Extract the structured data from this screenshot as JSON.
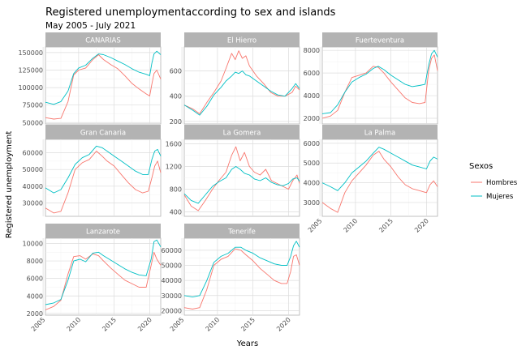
{
  "title": "Registered unemploymentaccording to sex and islands",
  "subtitle": "May 2005 - July 2021",
  "chart_data": {
    "type": "line",
    "xlabel": "Years",
    "ylabel": "Registered unemployment",
    "x_ticks": [
      2005,
      2010,
      2015,
      2020
    ],
    "x_range": [
      2005.33,
      2021.55
    ],
    "legend": {
      "title": "Sexos",
      "position": "right",
      "entries": [
        {
          "name": "Hombres",
          "color": "#F8766D"
        },
        {
          "name": "Mujeres",
          "color": "#00BFC4"
        }
      ]
    },
    "grid": true,
    "panels": [
      {
        "name": "CANARIAS",
        "ylim": [
          48000,
          158000
        ],
        "y_ticks": [
          50000,
          75000,
          100000,
          125000,
          150000
        ],
        "y_tick_labels": [
          "50000",
          "75000",
          "100000",
          "125000",
          "150000"
        ],
        "series": [
          {
            "name": "Hombres",
            "x": [
              2005.33,
              2006.5,
              2007.5,
              2008.5,
              2009.3,
              2010,
              2011,
              2012,
              2012.8,
              2013.5,
              2014.5,
              2015.5,
              2016.5,
              2017.5,
              2018.5,
              2019.5,
              2020,
              2020.3,
              2020.6,
              2021,
              2021.55
            ],
            "y": [
              57000,
              55000,
              56000,
              80000,
              118000,
              125000,
              128000,
              140000,
              147000,
              140000,
              133000,
              127000,
              117000,
              106000,
              98000,
              91000,
              88000,
              105000,
              120000,
              125000,
              112000
            ]
          },
          {
            "name": "Mujeres",
            "x": [
              2005.33,
              2006.5,
              2007.5,
              2008.5,
              2009.3,
              2010,
              2011,
              2012,
              2012.8,
              2013.5,
              2014.5,
              2015.5,
              2016.5,
              2017.5,
              2018.5,
              2019.5,
              2020,
              2020.3,
              2020.6,
              2021,
              2021.55
            ],
            "y": [
              79000,
              76000,
              80000,
              95000,
              120000,
              128000,
              132000,
              142000,
              148000,
              147000,
              143000,
              138000,
              133000,
              127000,
              122000,
              119000,
              117000,
              135000,
              148000,
              152000,
              147000
            ]
          }
        ]
      },
      {
        "name": "El Hierro",
        "ylim": [
          180,
          790
        ],
        "y_ticks": [
          200,
          400,
          600
        ],
        "y_tick_labels": [
          "200",
          "400",
          "600"
        ],
        "series": [
          {
            "name": "Hombres",
            "x": [
              2005.33,
              2006.5,
              2007.5,
              2008.5,
              2009.5,
              2010.5,
              2011.2,
              2012,
              2012.5,
              2013,
              2013.5,
              2014,
              2014.5,
              2015.5,
              2016.5,
              2017.5,
              2018.5,
              2019.5,
              2020.5,
              2021,
              2021.55
            ],
            "y": [
              330,
              300,
              260,
              350,
              430,
              520,
              620,
              740,
              690,
              760,
              700,
              720,
              640,
              560,
              500,
              430,
              400,
              400,
              430,
              480,
              450
            ]
          },
          {
            "name": "Mujeres",
            "x": [
              2005.33,
              2006.5,
              2007.5,
              2008.5,
              2009.5,
              2010.5,
              2011.2,
              2012,
              2012.5,
              2013,
              2013.5,
              2014,
              2014.5,
              2015.5,
              2016.5,
              2017.5,
              2018.5,
              2019.5,
              2020.5,
              2021,
              2021.55
            ],
            "y": [
              330,
              290,
              250,
              320,
              410,
              470,
              520,
              560,
              590,
              580,
              600,
              570,
              560,
              520,
              480,
              440,
              410,
              400,
              460,
              500,
              460
            ]
          }
        ]
      },
      {
        "name": "Fuerteventura",
        "ylim": [
          1500,
          8300
        ],
        "y_ticks": [
          2000,
          4000,
          6000,
          8000
        ],
        "y_tick_labels": [
          "2000",
          "4000",
          "6000",
          "8000"
        ],
        "series": [
          {
            "name": "Hombres",
            "x": [
              2005.33,
              2006.5,
              2007.5,
              2008.5,
              2009.5,
              2010.5,
              2011.5,
              2012.5,
              2013.2,
              2014,
              2015,
              2016,
              2017,
              2018,
              2019,
              2019.8,
              2020.3,
              2020.7,
              2021.1,
              2021.55
            ],
            "y": [
              2000,
              2200,
              2700,
              4300,
              5600,
              5800,
              6000,
              6600,
              6500,
              6000,
              5200,
              4500,
              3800,
              3400,
              3300,
              3400,
              6200,
              7300,
              7600,
              6200
            ]
          },
          {
            "name": "Mujeres",
            "x": [
              2005.33,
              2006.5,
              2007.5,
              2008.5,
              2009.5,
              2010.5,
              2011.5,
              2012.5,
              2013.2,
              2014,
              2015,
              2016,
              2017,
              2018,
              2019,
              2019.8,
              2020.3,
              2020.7,
              2021.1,
              2021.55
            ],
            "y": [
              2400,
              2500,
              3200,
              4300,
              5200,
              5600,
              5900,
              6400,
              6600,
              6300,
              5800,
              5400,
              5000,
              4800,
              4900,
              5000,
              6700,
              7700,
              8000,
              7400
            ]
          }
        ]
      },
      {
        "name": "Gran Canaria",
        "ylim": [
          22000,
          68000
        ],
        "y_ticks": [
          30000,
          40000,
          50000,
          60000
        ],
        "y_tick_labels": [
          "30000",
          "40000",
          "50000",
          "60000"
        ],
        "series": [
          {
            "name": "Hombres",
            "x": [
              2005.33,
              2006.5,
              2007.5,
              2008.5,
              2009.5,
              2010.5,
              2011.5,
              2012.5,
              2013.3,
              2014,
              2015,
              2016,
              2017,
              2018,
              2019,
              2019.8,
              2020.3,
              2020.7,
              2021.1,
              2021.55
            ],
            "y": [
              27000,
              24000,
              25000,
              36000,
              50000,
              54000,
              56000,
              61000,
              58000,
              55000,
              52000,
              47000,
              42000,
              38000,
              36000,
              37000,
              45000,
              52000,
              55000,
              48000
            ]
          },
          {
            "name": "Mujeres",
            "x": [
              2005.33,
              2006.5,
              2007.5,
              2008.5,
              2009.5,
              2010.5,
              2011.5,
              2012.5,
              2013.3,
              2014,
              2015,
              2016,
              2017,
              2018,
              2019,
              2019.8,
              2020.3,
              2020.7,
              2021.1,
              2021.55
            ],
            "y": [
              39000,
              36000,
              38000,
              45000,
              53000,
              57000,
              59000,
              64000,
              63000,
              61000,
              58000,
              55000,
              52000,
              49000,
              47000,
              47000,
              56000,
              61000,
              62000,
              58000
            ]
          }
        ]
      },
      {
        "name": "La Gomera",
        "ylim": [
          320,
          1680
        ],
        "y_ticks": [
          400,
          800,
          1200,
          1600
        ],
        "y_tick_labels": [
          "400",
          "800",
          "1200",
          "1600"
        ],
        "series": [
          {
            "name": "Hombres",
            "x": [
              2005.33,
              2006.3,
              2007.3,
              2008.3,
              2009.3,
              2010.2,
              2011.2,
              2012,
              2012.6,
              2013.2,
              2013.8,
              2014.5,
              2015.2,
              2016,
              2016.8,
              2017.6,
              2018.4,
              2019.2,
              2020,
              2020.6,
              2021.2,
              2021.55
            ],
            "y": [
              700,
              500,
              420,
              600,
              800,
              950,
              1100,
              1400,
              1550,
              1300,
              1450,
              1200,
              1100,
              1050,
              1150,
              950,
              900,
              850,
              800,
              950,
              1050,
              900
            ]
          },
          {
            "name": "Mujeres",
            "x": [
              2005.33,
              2006.3,
              2007.3,
              2008.3,
              2009.3,
              2010.2,
              2011.2,
              2012,
              2012.6,
              2013.2,
              2013.8,
              2014.5,
              2015.2,
              2016,
              2016.8,
              2017.6,
              2018.4,
              2019.2,
              2020,
              2020.6,
              2021.2,
              2021.55
            ],
            "y": [
              720,
              600,
              550,
              700,
              850,
              930,
              1000,
              1150,
              1200,
              1150,
              1080,
              1050,
              980,
              950,
              1000,
              920,
              880,
              860,
              900,
              980,
              1000,
              940
            ]
          }
        ]
      },
      {
        "name": "La Palma",
        "ylim": [
          2300,
          6200
        ],
        "y_ticks": [
          3000,
          4000,
          5000,
          6000
        ],
        "y_tick_labels": [
          "3000",
          "4000",
          "5000",
          "6000"
        ],
        "series": [
          {
            "name": "Hombres",
            "x": [
              2005.33,
              2006.5,
              2007.5,
              2008.5,
              2009.5,
              2010.5,
              2011.5,
              2012.5,
              2013.3,
              2014,
              2015,
              2016,
              2017,
              2018,
              2019,
              2020,
              2020.5,
              2021,
              2021.55
            ],
            "y": [
              3000,
              2700,
              2500,
              3500,
              4100,
              4500,
              4900,
              5400,
              5600,
              5200,
              4800,
              4300,
              3900,
              3700,
              3600,
              3500,
              3900,
              4100,
              3800
            ]
          },
          {
            "name": "Mujeres",
            "x": [
              2005.33,
              2006.5,
              2007.5,
              2008.5,
              2009.5,
              2010.5,
              2011.5,
              2012.5,
              2013.3,
              2014,
              2015,
              2016,
              2017,
              2018,
              2019,
              2020,
              2020.5,
              2021,
              2021.55
            ],
            "y": [
              4000,
              3800,
              3600,
              4000,
              4500,
              4800,
              5100,
              5500,
              5800,
              5700,
              5500,
              5300,
              5100,
              4900,
              4800,
              4700,
              5100,
              5300,
              5200
            ]
          }
        ]
      },
      {
        "name": "Lanzarote",
        "ylim": [
          1800,
          10600
        ],
        "y_ticks": [
          2000,
          4000,
          6000,
          8000,
          10000
        ],
        "y_tick_labels": [
          "2000",
          "4000",
          "6000",
          "8000",
          "10000"
        ],
        "series": [
          {
            "name": "Hombres",
            "x": [
              2005.33,
              2006.5,
              2007.5,
              2008.5,
              2009.3,
              2010.2,
              2011,
              2012,
              2012.8,
              2013.5,
              2014.5,
              2015.5,
              2016.5,
              2017.5,
              2018.5,
              2019.5,
              2020.2,
              2020.6,
              2021,
              2021.55
            ],
            "y": [
              2400,
              2800,
              3500,
              6500,
              8500,
              8600,
              8200,
              8800,
              8600,
              8000,
              7200,
              6500,
              5800,
              5400,
              5000,
              5000,
              7500,
              9000,
              8200,
              7500
            ]
          },
          {
            "name": "Mujeres",
            "x": [
              2005.33,
              2006.5,
              2007.5,
              2008.5,
              2009.3,
              2010.2,
              2011,
              2012,
              2012.8,
              2013.5,
              2014.5,
              2015.5,
              2016.5,
              2017.5,
              2018.5,
              2019.5,
              2020.2,
              2020.6,
              2021,
              2021.55
            ],
            "y": [
              3000,
              3200,
              3600,
              5800,
              8000,
              8200,
              7900,
              8900,
              9000,
              8600,
              8100,
              7600,
              7100,
              6700,
              6400,
              6300,
              8200,
              10200,
              10400,
              9600
            ]
          }
        ]
      },
      {
        "name": "Tenerife",
        "ylim": [
          17000,
          68000
        ],
        "y_ticks": [
          20000,
          30000,
          40000,
          50000,
          60000
        ],
        "y_tick_labels": [
          "20000",
          "30000",
          "40000",
          "50000",
          "60000"
        ],
        "series": [
          {
            "name": "Hombres",
            "x": [
              2005.33,
              2006.5,
              2007.5,
              2008.5,
              2009.5,
              2010.5,
              2011.5,
              2012.5,
              2013.3,
              2014,
              2015,
              2016,
              2017,
              2018,
              2019,
              2019.8,
              2020.3,
              2020.7,
              2021.1,
              2021.55
            ],
            "y": [
              22000,
              21000,
              22000,
              34000,
              50000,
              54000,
              56000,
              61000,
              60000,
              57000,
              53000,
              48000,
              44000,
              40000,
              38000,
              38000,
              46000,
              56000,
              57000,
              50000
            ]
          },
          {
            "name": "Mujeres",
            "x": [
              2005.33,
              2006.5,
              2007.5,
              2008.5,
              2009.5,
              2010.5,
              2011.5,
              2012.5,
              2013.3,
              2014,
              2015,
              2016,
              2017,
              2018,
              2019,
              2019.8,
              2020.3,
              2020.7,
              2021.1,
              2021.55
            ],
            "y": [
              30000,
              29000,
              30000,
              40000,
              52000,
              56000,
              58000,
              62000,
              62000,
              60000,
              58000,
              55000,
              53000,
              51000,
              50000,
              50000,
              56000,
              63000,
              66000,
              62000
            ]
          }
        ]
      }
    ]
  }
}
